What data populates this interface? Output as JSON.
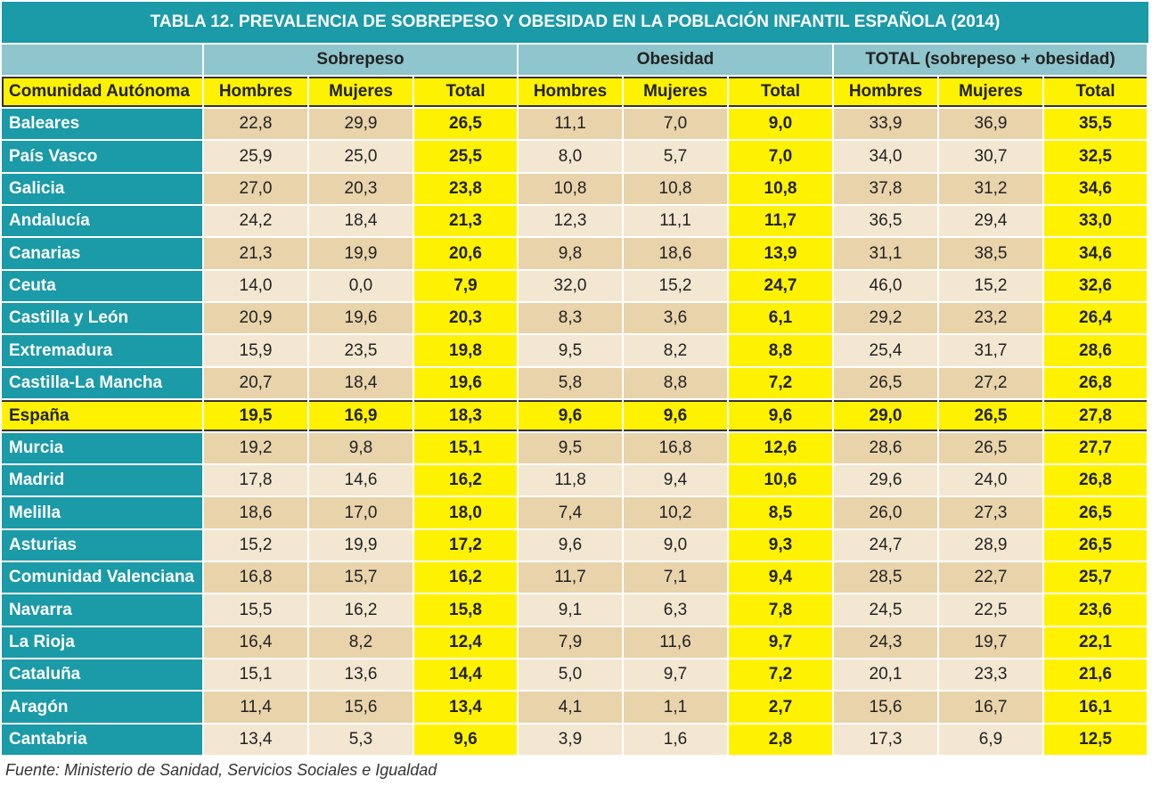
{
  "header": {
    "title": "TABLA 12. PREVALENCIA DE SOBREPESO Y OBESIDAD EN LA POBLACIÓN INFANTIL ESPAÑOLA (2014)"
  },
  "table": {
    "groups": [
      "Sobrepeso",
      "Obesidad",
      "TOTAL (sobrepeso + obesidad)"
    ],
    "columns": [
      "Comunidad Autónoma",
      "Hombres",
      "Mujeres",
      "Total",
      "Hombres",
      "Mujeres",
      "Total",
      "Hombres",
      "Mujeres",
      "Total"
    ],
    "highlighted_row": 9,
    "rows": [
      [
        "Baleares",
        "22,8",
        "29,9",
        "26,5",
        "11,1",
        "7,0",
        "9,0",
        "33,9",
        "36,9",
        "35,5"
      ],
      [
        "País Vasco",
        "25,9",
        "25,0",
        "25,5",
        "8,0",
        "5,7",
        "7,0",
        "34,0",
        "30,7",
        "32,5"
      ],
      [
        "Galicia",
        "27,0",
        "20,3",
        "23,8",
        "10,8",
        "10,8",
        "10,8",
        "37,8",
        "31,2",
        "34,6"
      ],
      [
        "Andalucía",
        "24,2",
        "18,4",
        "21,3",
        "12,3",
        "11,1",
        "11,7",
        "36,5",
        "29,4",
        "33,0"
      ],
      [
        "Canarias",
        "21,3",
        "19,9",
        "20,6",
        "9,8",
        "18,6",
        "13,9",
        "31,1",
        "38,5",
        "34,6"
      ],
      [
        "Ceuta",
        "14,0",
        "0,0",
        "7,9",
        "32,0",
        "15,2",
        "24,7",
        "46,0",
        "15,2",
        "32,6"
      ],
      [
        "Castilla y León",
        "20,9",
        "19,6",
        "20,3",
        "8,3",
        "3,6",
        "6,1",
        "29,2",
        "23,2",
        "26,4"
      ],
      [
        "Extremadura",
        "15,9",
        "23,5",
        "19,8",
        "9,5",
        "8,2",
        "8,8",
        "25,4",
        "31,7",
        "28,6"
      ],
      [
        "Castilla-La Mancha",
        "20,7",
        "18,4",
        "19,6",
        "5,8",
        "8,8",
        "7,2",
        "26,5",
        "27,2",
        "26,8"
      ],
      [
        "España",
        "19,5",
        "16,9",
        "18,3",
        "9,6",
        "9,6",
        "9,6",
        "29,0",
        "26,5",
        "27,8"
      ],
      [
        "Murcia",
        "19,2",
        "9,8",
        "15,1",
        "9,5",
        "16,8",
        "12,6",
        "28,6",
        "26,5",
        "27,7"
      ],
      [
        "Madrid",
        "17,8",
        "14,6",
        "16,2",
        "11,8",
        "9,4",
        "10,6",
        "29,6",
        "24,0",
        "26,8"
      ],
      [
        "Melilla",
        "18,6",
        "17,0",
        "18,0",
        "7,4",
        "10,2",
        "8,5",
        "26,0",
        "27,3",
        "26,5"
      ],
      [
        "Asturias",
        "15,2",
        "19,9",
        "17,2",
        "9,6",
        "9,0",
        "9,3",
        "24,7",
        "28,9",
        "26,5"
      ],
      [
        "Comunidad Valenciana",
        "16,8",
        "15,7",
        "16,2",
        "11,7",
        "7,1",
        "9,4",
        "28,5",
        "22,7",
        "25,7"
      ],
      [
        "Navarra",
        "15,5",
        "16,2",
        "15,8",
        "9,1",
        "6,3",
        "7,8",
        "24,5",
        "22,5",
        "23,6"
      ],
      [
        "La Rioja",
        "16,4",
        "8,2",
        "12,4",
        "7,9",
        "11,6",
        "9,7",
        "24,3",
        "19,7",
        "22,1"
      ],
      [
        "Cataluña",
        "15,1",
        "13,6",
        "14,4",
        "5,0",
        "9,7",
        "7,2",
        "20,1",
        "23,3",
        "21,6"
      ],
      [
        "Aragón",
        "11,4",
        "15,6",
        "13,4",
        "4,1",
        "1,1",
        "2,7",
        "15,6",
        "16,7",
        "16,1"
      ],
      [
        "Cantabria",
        "13,4",
        "5,3",
        "9,6",
        "3,9",
        "1,6",
        "2,8",
        "17,3",
        "6,9",
        "12,5"
      ]
    ]
  },
  "footer": {
    "source": "Fuente: Ministerio de Sanidad, Servicios Sociales e Igualdad"
  }
}
